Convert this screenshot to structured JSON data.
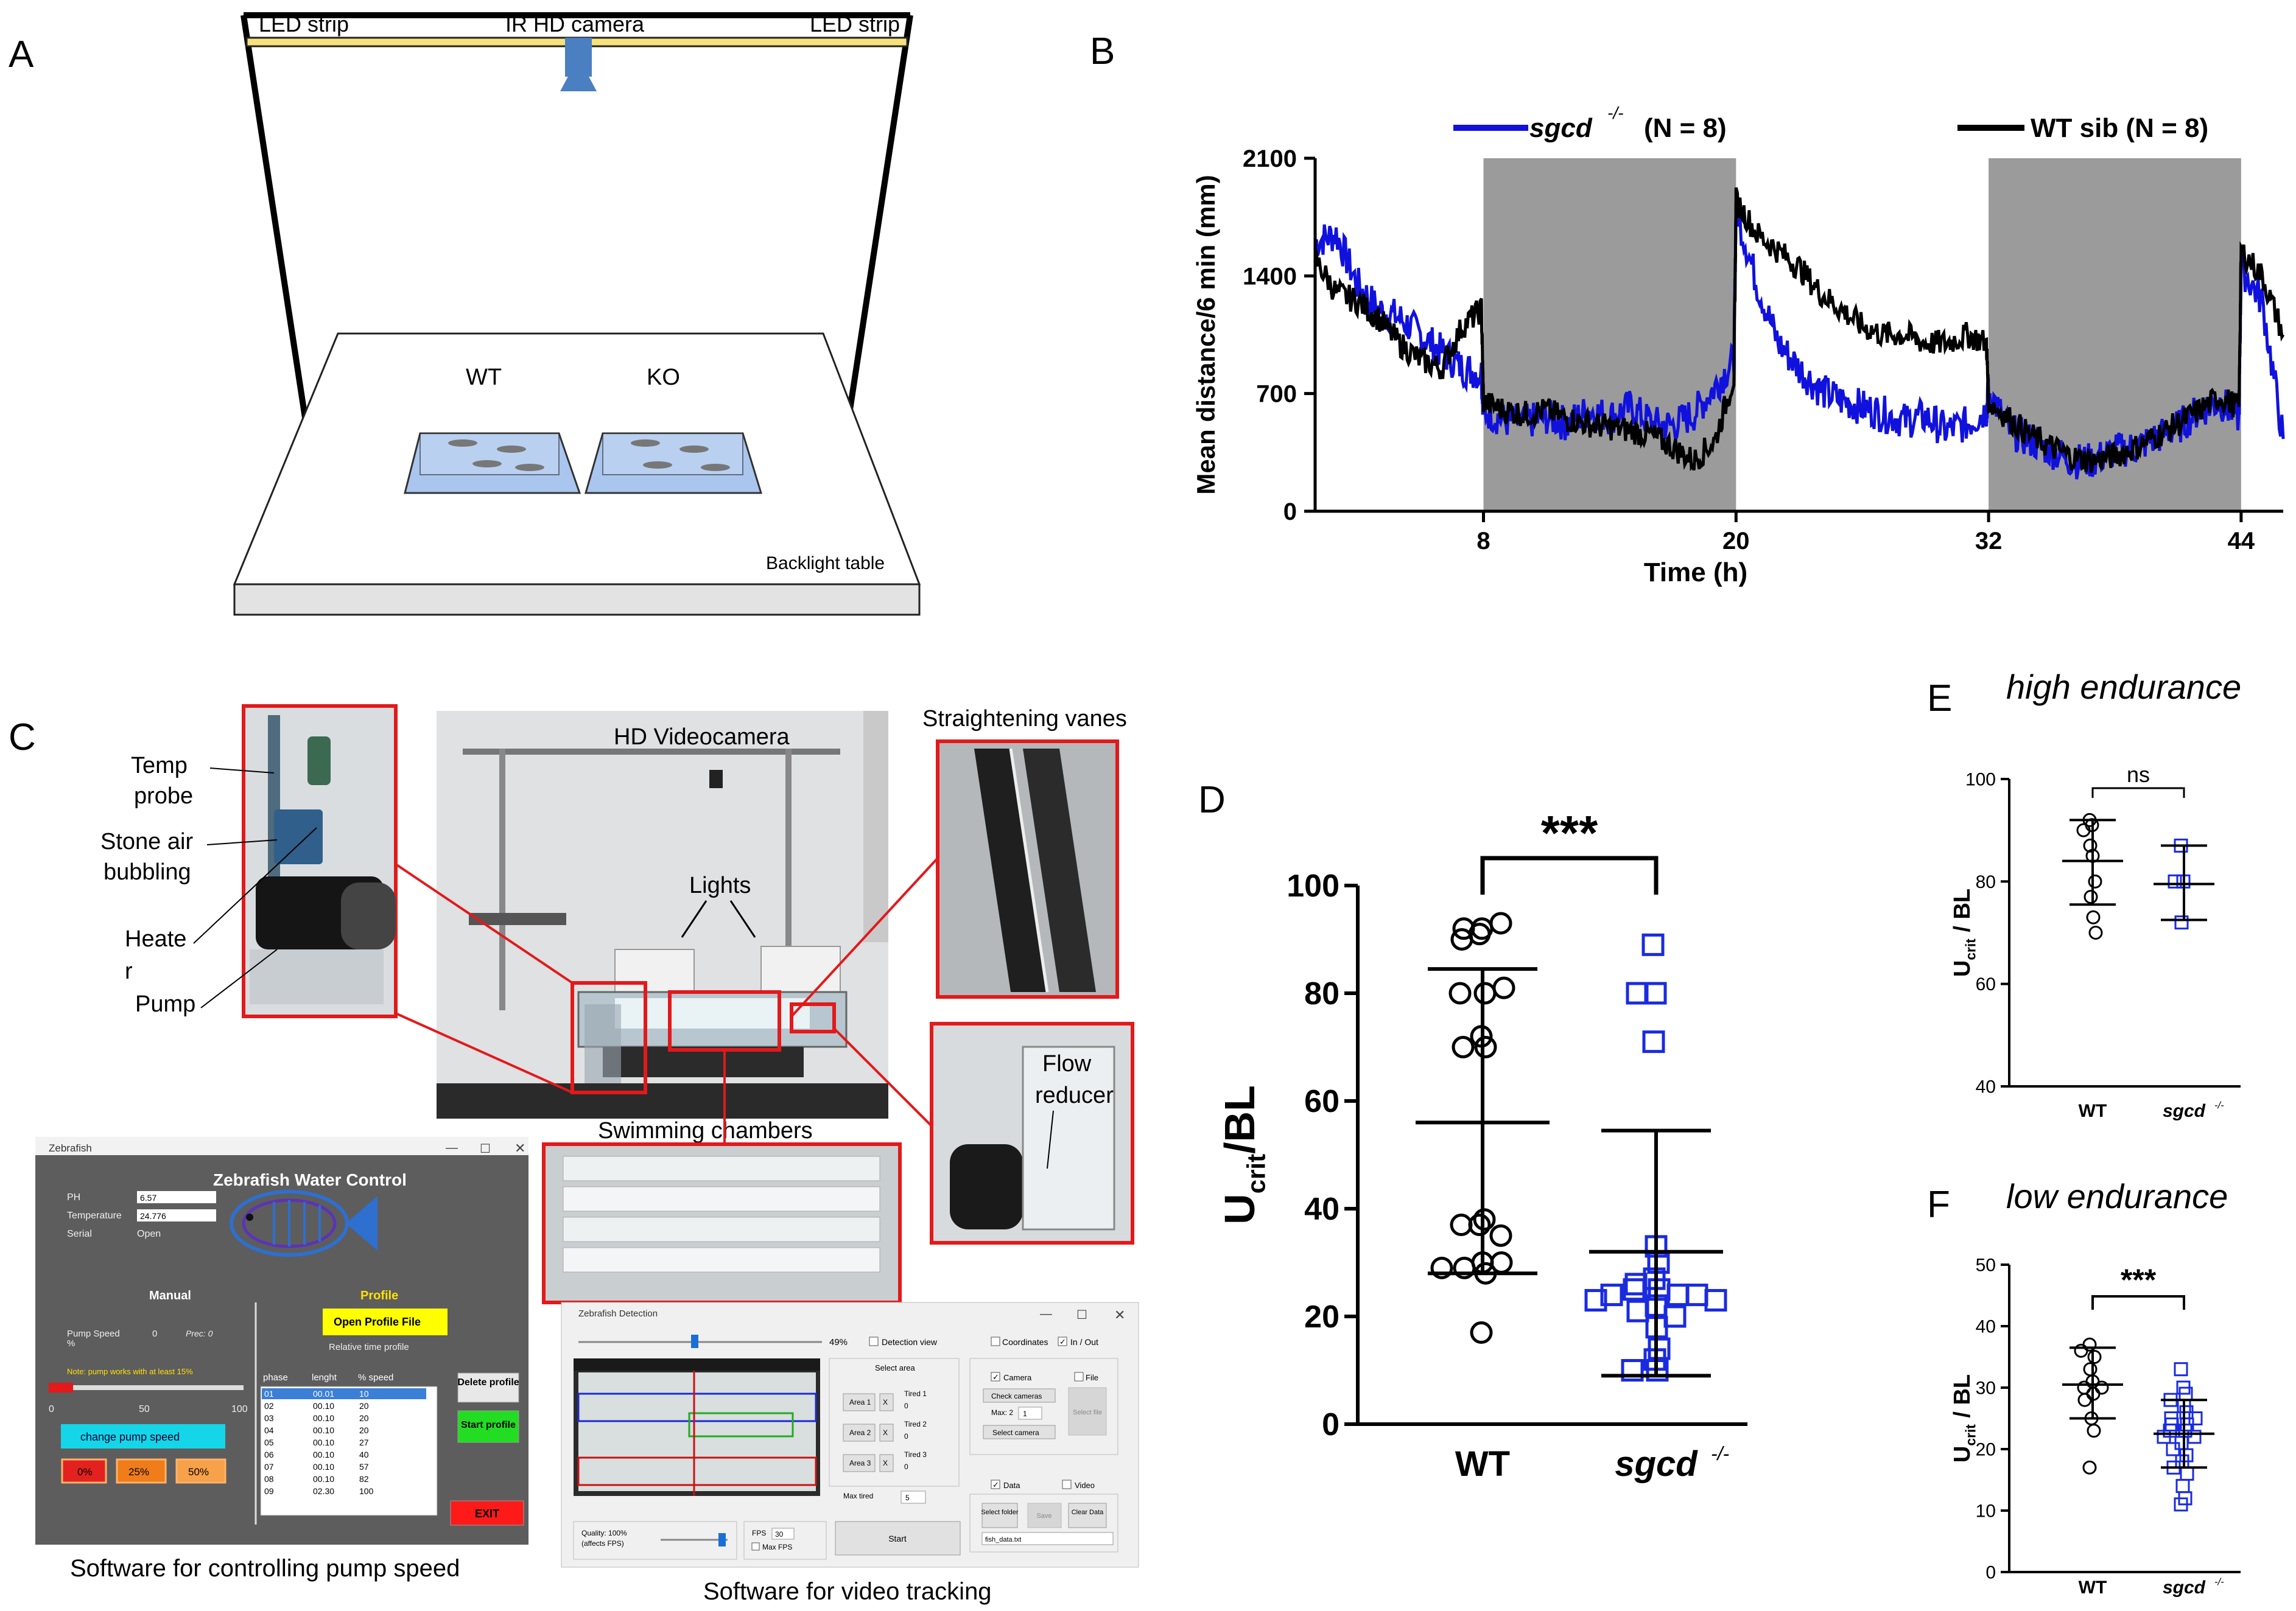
{
  "panel_letters": {
    "a": "A",
    "b": "B",
    "c": "C",
    "d": "D",
    "e": "E",
    "f": "F"
  },
  "panel_a": {
    "led_left": "LED strip",
    "camera": "IR HD camera",
    "led_right": "LED strip",
    "tank_wt": "WT",
    "tank_ko": "KO",
    "table": "Backlight table",
    "colors": {
      "led": "#f6e27a",
      "camera": "#4a7fc1",
      "tank": "#aac6ef"
    }
  },
  "panel_b": {
    "legend_ko_gene": "sgcd",
    "legend_ko_sup": "-/-",
    "legend_ko_n": "(N = 8)",
    "legend_wt": "WT sib (N = 8)",
    "colors": {
      "ko": "#1111dd",
      "wt": "#000000",
      "dark": "#9b9b9b"
    }
  },
  "panel_c": {
    "temp_probe_1": "Temp",
    "temp_probe_2": "probe",
    "stone_1": "Stone air",
    "stone_2": "bubbling",
    "heater_1": "Heate",
    "heater_2": "r",
    "pump": "Pump",
    "hd_camera": "HD Videocamera",
    "lights": "Lights",
    "swimming": "Swimming chambers",
    "vanes": "Straightening vanes",
    "flow_1": "Flow",
    "flow_2": "reducer",
    "caption_pump": "Software for controlling pump speed",
    "caption_video": "Software for video tracking",
    "pump_app": {
      "window_title": "Zebrafish",
      "title": "Zebrafish Water Control",
      "ph_label": "PH",
      "ph_value": "6.57",
      "temp_label": "Temperature",
      "temp_value": "24.776",
      "serial_label": "Serial",
      "serial_value": "Open",
      "manual": "Manual",
      "profile": "Profile",
      "pump_speed_label": "Pump Speed",
      "pump_speed_pct": "%",
      "pump_speed_val": "0",
      "prec": "Prec: 0",
      "note": "Note: pump works with at least 15%",
      "scale": [
        "0",
        "50",
        "100"
      ],
      "change_btn": "change pump speed",
      "btn_0": "0%",
      "btn_25": "25%",
      "btn_50": "50%",
      "open_profile": "Open Profile File",
      "relative": "Relative time profile",
      "table_headers": [
        "phase",
        "lenght",
        "% speed"
      ],
      "table_rows": [
        [
          "01",
          "00.01",
          "10"
        ],
        [
          "02",
          "00.10",
          "20"
        ],
        [
          "03",
          "00.10",
          "20"
        ],
        [
          "04",
          "00.10",
          "20"
        ],
        [
          "05",
          "00.10",
          "27"
        ],
        [
          "06",
          "00.10",
          "40"
        ],
        [
          "07",
          "00.10",
          "57"
        ],
        [
          "08",
          "00.10",
          "82"
        ],
        [
          "09",
          "02.30",
          "100"
        ]
      ],
      "delete_btn": "Delete profile",
      "start_btn": "Start profile",
      "exit_btn": "EXIT"
    },
    "video_app": {
      "window_title": "Zebrafish Detection",
      "zoom": "49%",
      "detection_view": "Detection view",
      "coordinates": "Coordinates",
      "in_out": "In / Out",
      "select_area": "Select area",
      "area1": "Area 1",
      "area2": "Area 2",
      "area3": "Area 3",
      "x": "X",
      "tired1": "Tired 1",
      "tired2": "Tired 2",
      "tired3": "Tired 3",
      "zero": "0",
      "max_tired": "Max tired",
      "max_tired_val": "5",
      "camera": "Camera",
      "file": "File",
      "check_cameras": "Check cameras",
      "max": "Max: 2",
      "max_val": "1",
      "select_camera": "Select camera",
      "select_file": "Select file",
      "data": "Data",
      "video": "Video",
      "select_folder": "Select folder",
      "save": "Save",
      "clear_data": "Clear Data",
      "file_name": "fish_data.txt",
      "quality": "Quality: 100%",
      "affects": "(affects FPS)",
      "fps": "FPS",
      "fps_val": "30",
      "max_fps": "Max FPS",
      "start": "Start"
    }
  },
  "chart_data": [
    {
      "id": "B",
      "type": "line",
      "title": "",
      "xlabel": "Time (h)",
      "ylabel": "Mean distance/6 min (mm)",
      "xlim": [
        0,
        46
      ],
      "ylim": [
        0,
        2100
      ],
      "xticks": [
        "8",
        "20",
        "32",
        "44"
      ],
      "yticks": [
        "0",
        "700",
        "1400",
        "2100"
      ],
      "dark_periods": [
        [
          8,
          20
        ],
        [
          32,
          44
        ]
      ],
      "series": [
        {
          "name": "sgcd -/- (N = 8)",
          "color": "#1111dd",
          "x": [
            0,
            1,
            2,
            3,
            4,
            5,
            6,
            7,
            7.9,
            8,
            9,
            10,
            11,
            12,
            13,
            14,
            15,
            16,
            17,
            18,
            19,
            19.9,
            20,
            21,
            22,
            23,
            24,
            25,
            26,
            27,
            28,
            29,
            30,
            31,
            31.9,
            32,
            33,
            34,
            35,
            36,
            37,
            38,
            39,
            40,
            41,
            42,
            43,
            43.9,
            44,
            45,
            46
          ],
          "y": [
            1600,
            1650,
            1350,
            1200,
            1150,
            1050,
            950,
            850,
            820,
            600,
            540,
            530,
            560,
            520,
            600,
            560,
            620,
            520,
            510,
            580,
            740,
            900,
            1800,
            1350,
            1000,
            850,
            720,
            660,
            620,
            580,
            540,
            560,
            480,
            520,
            600,
            720,
            480,
            420,
            360,
            300,
            300,
            360,
            380,
            440,
            500,
            600,
            650,
            560,
            1450,
            1250,
            430
          ]
        },
        {
          "name": "WT sib (N = 8)",
          "color": "#000000",
          "x": [
            0,
            1,
            2,
            3,
            4,
            5,
            6,
            7,
            7.9,
            8,
            9,
            10,
            11,
            12,
            13,
            14,
            15,
            16,
            17,
            18,
            19,
            19.9,
            20,
            21,
            22,
            23,
            24,
            25,
            26,
            27,
            28,
            29,
            30,
            31,
            31.9,
            32,
            33,
            34,
            35,
            36,
            37,
            38,
            39,
            40,
            41,
            42,
            43,
            43.9,
            44,
            45,
            46
          ],
          "y": [
            1500,
            1300,
            1250,
            1150,
            1000,
            900,
            850,
            1100,
            1200,
            650,
            600,
            580,
            600,
            550,
            520,
            500,
            480,
            450,
            380,
            300,
            420,
            800,
            1850,
            1650,
            1550,
            1450,
            1300,
            1200,
            1100,
            1050,
            1050,
            1000,
            1000,
            1050,
            1000,
            650,
            550,
            450,
            380,
            320,
            300,
            330,
            380,
            450,
            520,
            600,
            680,
            620,
            1550,
            1400,
            1050
          ]
        }
      ]
    },
    {
      "id": "D",
      "type": "scatter",
      "title": "",
      "significance": "***",
      "ylabel_main": "U",
      "ylabel_sub": "crit",
      "ylabel_rest": "/BL",
      "ylim": [
        0,
        100
      ],
      "yticks": [
        "0",
        "20",
        "40",
        "60",
        "80",
        "100"
      ],
      "categories": [
        "WT",
        "sgcd"
      ],
      "category_sup": "-/-",
      "series": [
        {
          "name": "WT",
          "color": "#000000",
          "marker": "circle",
          "mean": 56,
          "sd_low": 28,
          "sd_high": 84.5,
          "values": [
            91,
            92,
            92,
            93,
            90,
            80,
            80,
            81,
            70,
            72,
            70,
            37,
            37,
            38,
            35,
            30,
            29,
            30,
            29,
            28,
            17
          ]
        },
        {
          "name": "sgcd -/-",
          "color": "#1a2bdf",
          "marker": "square",
          "mean": 32,
          "sd_low": 9,
          "sd_high": 54.5,
          "values": [
            89,
            80,
            80,
            71,
            33,
            30,
            27,
            26,
            25,
            25,
            24,
            24,
            24,
            23,
            23,
            22,
            21,
            20,
            18,
            14,
            12,
            10,
            10
          ]
        }
      ]
    },
    {
      "id": "E",
      "type": "scatter",
      "title": "high endurance",
      "significance": "ns",
      "ylabel_main": "U",
      "ylabel_sub": "crit",
      "ylabel_rest": " / BL",
      "ylim": [
        40,
        100
      ],
      "yticks": [
        "40",
        "60",
        "80",
        "100"
      ],
      "categories": [
        "WT",
        "sgcd"
      ],
      "category_sup": "-/-",
      "series": [
        {
          "name": "WT",
          "color": "#000000",
          "marker": "circle",
          "mean": 84,
          "sd_low": 75.5,
          "sd_high": 92,
          "values": [
            92,
            91,
            90,
            87,
            85,
            80,
            77,
            73,
            70
          ]
        },
        {
          "name": "sgcd -/-",
          "color": "#1a2bdf",
          "marker": "square",
          "mean": 79.5,
          "sd_low": 72.5,
          "sd_high": 87,
          "values": [
            87,
            80,
            80,
            72
          ]
        }
      ]
    },
    {
      "id": "F",
      "type": "scatter",
      "title": "low endurance",
      "significance": "***",
      "ylabel_main": "U",
      "ylabel_sub": "crit",
      "ylabel_rest": " / BL",
      "ylim": [
        0,
        50
      ],
      "yticks": [
        "0",
        "10",
        "20",
        "30",
        "40",
        "50"
      ],
      "categories": [
        "WT",
        "sgcd"
      ],
      "category_sup": "-/-",
      "series": [
        {
          "name": "WT",
          "color": "#000000",
          "marker": "circle",
          "mean": 30.5,
          "sd_low": 25,
          "sd_high": 36.5,
          "values": [
            37,
            36,
            35,
            33,
            31,
            30,
            30,
            29,
            28,
            25,
            23,
            17
          ]
        },
        {
          "name": "sgcd -/-",
          "color": "#1a2bdf",
          "marker": "square",
          "mean": 22.5,
          "sd_low": 17,
          "sd_high": 28,
          "values": [
            33,
            30,
            29,
            28,
            27,
            26,
            25,
            25,
            24,
            24,
            23,
            23,
            22,
            22,
            21,
            20,
            19,
            18,
            17,
            16,
            14,
            12,
            11
          ]
        }
      ]
    }
  ]
}
